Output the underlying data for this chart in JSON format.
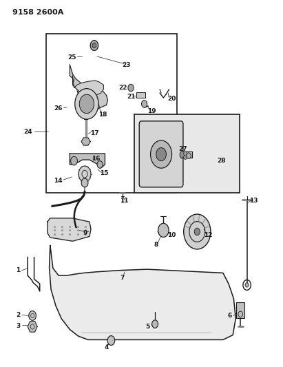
{
  "title": "9158 2600A",
  "bg_color": "#ffffff",
  "line_color": "#1a1a1a",
  "figsize": [
    4.11,
    5.33
  ],
  "dpi": 100
}
